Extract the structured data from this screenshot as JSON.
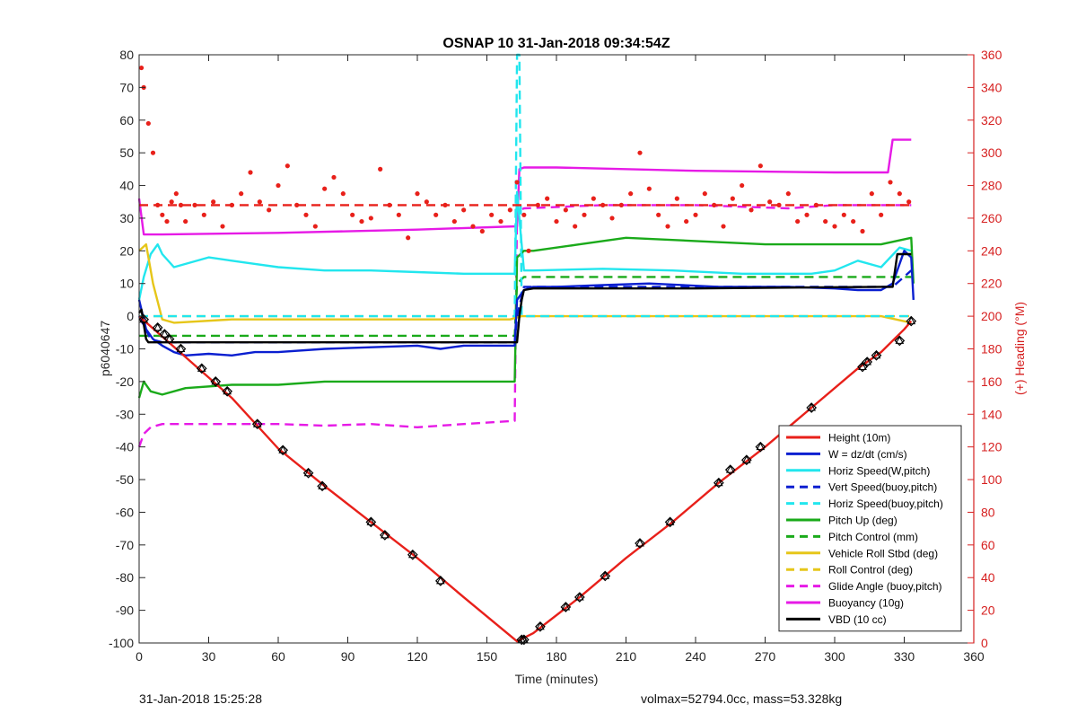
{
  "footer": {
    "left_text": "31-Jan-2018 15:25:28",
    "right_text": "volmax=52794.0cc, mass=53.328kg"
  },
  "chart_data": {
    "type": "line",
    "title": "OSNAP 10 31-Jan-2018 09:34:54Z",
    "xlabel": "Time (minutes)",
    "ylabel": "p6040647",
    "ylabel_right": "(+) Heading (°M)",
    "xlim": [
      0,
      360
    ],
    "ylim": [
      -100,
      80
    ],
    "ylim_right": [
      0,
      360
    ],
    "x_ticks": [
      0,
      30,
      60,
      90,
      120,
      150,
      180,
      210,
      240,
      270,
      300,
      330,
      360
    ],
    "y_ticks": [
      -100,
      -90,
      -80,
      -70,
      -60,
      -50,
      -40,
      -30,
      -20,
      -10,
      0,
      10,
      20,
      30,
      40,
      50,
      60,
      70,
      80
    ],
    "y_ticks_right": [
      0,
      20,
      40,
      60,
      80,
      100,
      120,
      140,
      160,
      180,
      200,
      220,
      240,
      260,
      280,
      300,
      320,
      340,
      360
    ],
    "grid": false,
    "legend_position": "bottom-right",
    "colors": {
      "red": "#e8201a",
      "blue": "#0a1fd0",
      "cyan": "#22e6ee",
      "green": "#1aaa1a",
      "yellow": "#e6c619",
      "magenta": "#e61ae6",
      "black": "#000000",
      "axis_right": "#d62020"
    },
    "series": [
      {
        "name": "Height (10m)",
        "color": "red",
        "style": "solid",
        "x": [
          0,
          20,
          40,
          60,
          80,
          100,
          120,
          140,
          163,
          170,
          190,
          210,
          230,
          250,
          270,
          290,
          310,
          320,
          330,
          333
        ],
        "y": [
          0,
          -12.5,
          -25,
          -40.5,
          -52,
          -63,
          -74,
          -86,
          -99.5,
          -97,
          -86,
          -74,
          -63,
          -51,
          -40,
          -28,
          -16,
          -11,
          -4,
          -1.5
        ]
      },
      {
        "name": "W = dz/dt (cm/s)",
        "color": "blue",
        "style": "solid",
        "x": [
          0,
          3,
          6,
          10,
          15,
          20,
          30,
          40,
          50,
          60,
          80,
          100,
          120,
          130,
          140,
          150,
          162,
          163,
          166,
          170,
          180,
          200,
          220,
          250,
          280,
          300,
          310,
          320,
          325,
          330,
          333,
          334
        ],
        "y": [
          5,
          -4,
          -7,
          -9,
          -11,
          -12,
          -11.5,
          -12,
          -11,
          -11,
          -10,
          -9.5,
          -9,
          -10,
          -9,
          -9,
          -9,
          5,
          8,
          9,
          9,
          9.5,
          10,
          9,
          9,
          8.5,
          8,
          8,
          10,
          20,
          18,
          5
        ]
      },
      {
        "name": "Horiz Speed(W,pitch)",
        "color": "cyan",
        "style": "solid",
        "x": [
          0,
          2,
          5,
          8,
          10,
          15,
          20,
          30,
          40,
          50,
          60,
          80,
          100,
          120,
          140,
          162,
          163,
          166,
          170,
          200,
          230,
          260,
          290,
          300,
          310,
          320,
          328,
          333
        ],
        "y": [
          5,
          12,
          19,
          22,
          19,
          15,
          16,
          18,
          17,
          16,
          15,
          14,
          14,
          13.5,
          13,
          13,
          38,
          14,
          14,
          14.5,
          14,
          13,
          13,
          14,
          17,
          15,
          21,
          20
        ]
      },
      {
        "name": "Vert Speed(buoy,pitch)",
        "color": "blue",
        "style": "dashed",
        "x": [
          0,
          5,
          10,
          162,
          163,
          166,
          240,
          300,
          325,
          333
        ],
        "y": [
          0,
          -7,
          -8,
          -8,
          0,
          9,
          9,
          9,
          9,
          14
        ]
      },
      {
        "name": "Horiz Speed(buoy,pitch)",
        "color": "cyan",
        "style": "dashed",
        "x": [
          0,
          5,
          162,
          163,
          164,
          165,
          170,
          333
        ],
        "y": [
          0,
          0,
          0,
          80,
          80,
          0,
          0,
          0
        ]
      },
      {
        "name": "Pitch Up (deg)",
        "color": "green",
        "style": "solid",
        "x": [
          0,
          2,
          5,
          10,
          20,
          40,
          60,
          80,
          100,
          120,
          140,
          162,
          163,
          166,
          170,
          190,
          210,
          240,
          270,
          300,
          320,
          333,
          334
        ],
        "y": [
          -25,
          -20,
          -23,
          -24,
          -22,
          -21,
          -21,
          -20,
          -20,
          -20,
          -20,
          -20,
          18,
          20,
          20,
          22,
          24,
          23,
          22,
          22,
          22,
          24,
          10
        ]
      },
      {
        "name": "Pitch Control (mm)",
        "color": "green",
        "style": "dashed",
        "x": [
          0,
          10,
          60,
          120,
          162,
          163,
          166,
          240,
          300,
          333
        ],
        "y": [
          -6,
          -6,
          -6,
          -6,
          -6,
          10,
          12,
          12,
          12,
          12
        ]
      },
      {
        "name": "Vehicle Roll Stbd (deg)",
        "color": "yellow",
        "style": "solid",
        "x": [
          0,
          3,
          6,
          10,
          15,
          40,
          80,
          120,
          160,
          165,
          200,
          240,
          280,
          320,
          333
        ],
        "y": [
          20,
          22,
          10,
          -1,
          -2,
          -1,
          -1,
          -1,
          -1,
          0,
          0,
          0,
          0,
          0,
          -2
        ]
      },
      {
        "name": "Roll Control (deg)",
        "color": "yellow",
        "style": "dashed",
        "x": [
          0,
          162,
          163,
          333
        ],
        "y": [
          0,
          0,
          0,
          0
        ]
      },
      {
        "name": "Glide Angle (buoy,pitch)",
        "color": "magenta",
        "style": "dashed",
        "x": [
          0,
          2,
          5,
          10,
          20,
          40,
          60,
          80,
          100,
          120,
          140,
          162,
          163,
          166,
          200,
          240,
          280,
          300,
          320,
          333
        ],
        "y": [
          -40,
          -36,
          -34,
          -33,
          -33,
          -33,
          -33,
          -33.5,
          -33,
          -34,
          -33,
          -32,
          32,
          33,
          34,
          34,
          33,
          34,
          34,
          34
        ]
      },
      {
        "name": "Buoyancy (10g)",
        "color": "magenta",
        "style": "solid",
        "x": [
          0,
          2,
          10,
          60,
          120,
          163,
          164,
          166,
          180,
          240,
          300,
          323,
          325,
          333
        ],
        "y": [
          36,
          25,
          25,
          25.5,
          26.5,
          27.5,
          45,
          45.5,
          45.5,
          44.5,
          44,
          44,
          54,
          54
        ]
      },
      {
        "name": "VBD (10 cc)",
        "color": "black",
        "style": "solid",
        "x": [
          0,
          1,
          3,
          4,
          162,
          163,
          164,
          165,
          166,
          170,
          240,
          320,
          325,
          327,
          333
        ],
        "y": [
          1,
          2,
          -7,
          -8,
          -8,
          -8,
          0,
          5,
          8,
          8.5,
          8.5,
          9,
          9,
          19,
          19
        ]
      }
    ],
    "heading_target": {
      "color": "red",
      "style": "dashed",
      "x": [
        0,
        333
      ],
      "y_right": [
        268,
        268
      ]
    },
    "heading_points": {
      "color": "red",
      "axis": "right",
      "x": [
        1,
        2,
        4,
        6,
        8,
        10,
        12,
        14,
        16,
        18,
        20,
        24,
        28,
        32,
        36,
        40,
        44,
        48,
        52,
        56,
        60,
        64,
        68,
        72,
        76,
        80,
        84,
        88,
        92,
        96,
        100,
        104,
        108,
        112,
        116,
        120,
        124,
        128,
        132,
        136,
        140,
        144,
        148,
        152,
        156,
        160,
        163,
        166,
        168,
        172,
        176,
        180,
        184,
        188,
        192,
        196,
        200,
        204,
        208,
        212,
        216,
        220,
        224,
        228,
        232,
        236,
        240,
        244,
        248,
        252,
        256,
        260,
        264,
        268,
        272,
        276,
        280,
        284,
        288,
        292,
        296,
        300,
        304,
        308,
        312,
        316,
        320,
        324,
        328,
        332
      ],
      "y": [
        352,
        340,
        318,
        300,
        268,
        262,
        258,
        270,
        275,
        268,
        258,
        268,
        262,
        270,
        255,
        268,
        275,
        288,
        270,
        265,
        280,
        292,
        268,
        262,
        255,
        278,
        285,
        275,
        262,
        258,
        260,
        290,
        268,
        262,
        248,
        275,
        270,
        262,
        268,
        258,
        265,
        255,
        252,
        262,
        258,
        265,
        282,
        262,
        240,
        268,
        272,
        258,
        265,
        255,
        262,
        272,
        268,
        260,
        268,
        275,
        300,
        278,
        262,
        255,
        272,
        258,
        262,
        275,
        268,
        255,
        272,
        280,
        265,
        292,
        270,
        268,
        275,
        258,
        262,
        268,
        258,
        255,
        262,
        258,
        252,
        275,
        262,
        282,
        275,
        270
      ]
    },
    "markers": {
      "style": "diamond-triangle",
      "color": "black",
      "x": [
        2,
        8,
        11,
        13,
        18,
        27,
        33,
        38,
        51,
        62,
        73,
        79,
        100,
        106,
        118,
        130,
        165,
        166,
        173,
        184,
        190,
        201,
        216,
        229,
        250,
        255,
        262,
        268,
        290,
        312,
        314,
        318,
        328,
        333
      ],
      "y": [
        -1,
        -3.5,
        -5.5,
        -7,
        -10,
        -16,
        -20,
        -23,
        -33,
        -41,
        -48,
        -52,
        -63,
        -67,
        -73,
        -81,
        -99,
        -99,
        -95,
        -89,
        -86,
        -79.5,
        -69.5,
        -63,
        -51,
        -47,
        -44,
        -40,
        -28,
        -15.5,
        -14,
        -12,
        -7.5,
        -1.5
      ]
    }
  }
}
